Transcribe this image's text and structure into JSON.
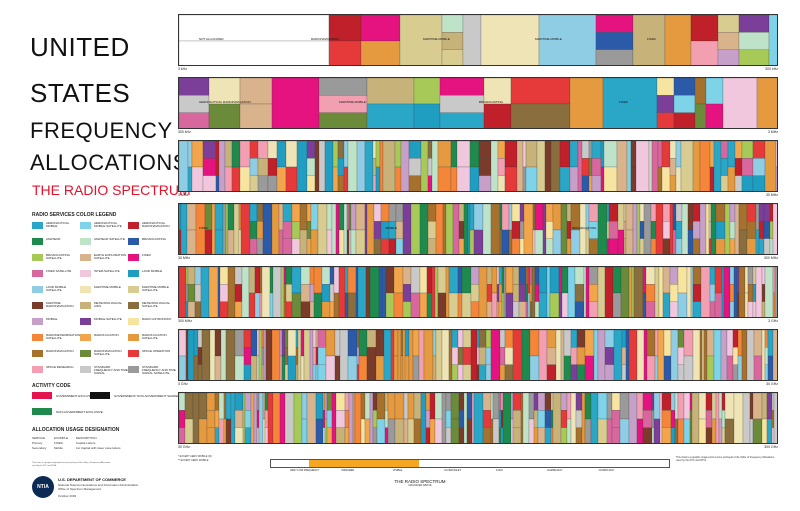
{
  "title": {
    "line1": "UNITED",
    "line2": "STATES",
    "line3": "FREQUENCY",
    "line4": "ALLOCATIONS",
    "subtitle": "THE RADIO SPECTRUM"
  },
  "legend": {
    "title": "RADIO SERVICES COLOR LEGEND",
    "items": [
      {
        "label": "AERONAUTICAL MOBILE",
        "color": "#2aa7c7"
      },
      {
        "label": "AERONAUTICAL MOBILE SATELLITE",
        "color": "#7fd3e8"
      },
      {
        "label": "AERONAUTICAL RADIONAVIGATION",
        "color": "#c0202a"
      },
      {
        "label": "AMATEUR",
        "color": "#1e8a4d"
      },
      {
        "label": "AMATEUR SATELLITE",
        "color": "#bfe3c9"
      },
      {
        "label": "BROADCASTING",
        "color": "#2b5ba8"
      },
      {
        "label": "BROADCASTING SATELLITE",
        "color": "#a7c957"
      },
      {
        "label": "EARTH EXPLORATION SATELLITE",
        "color": "#d9b38c"
      },
      {
        "label": "FIXED",
        "color": "#e4137f"
      },
      {
        "label": "FIXED SATELLITE",
        "color": "#d8679d"
      },
      {
        "label": "INTER-SATELLITE",
        "color": "#f0c7dc"
      },
      {
        "label": "LAND MOBILE",
        "color": "#1f9ec2"
      },
      {
        "label": "LAND MOBILE SATELLITE",
        "color": "#8ecde3"
      },
      {
        "label": "MARITIME MOBILE",
        "color": "#efe4b5"
      },
      {
        "label": "MARITIME MOBILE SATELLITE",
        "color": "#d8cc91"
      },
      {
        "label": "MARITIME RADIONAVIGATION",
        "color": "#7a3b2a"
      },
      {
        "label": "METEOROLOGICAL AIDS",
        "color": "#c7b27a"
      },
      {
        "label": "METEOROLOGICAL SATELLITE",
        "color": "#8a6e3d"
      },
      {
        "label": "MOBILE",
        "color": "#c7a0c9"
      },
      {
        "label": "MOBILE SATELLITE",
        "color": "#7b3f99"
      },
      {
        "label": "RADIO ASTRONOMY",
        "color": "#f7e4a0"
      },
      {
        "label": "RADIODETERMINATION SATELLITE",
        "color": "#f4863a"
      },
      {
        "label": "RADIOLOCATION",
        "color": "#f2a54a"
      },
      {
        "label": "RADIOLOCATION SATELLITE",
        "color": "#e59a3f"
      },
      {
        "label": "RADIONAVIGATION",
        "color": "#a6712d"
      },
      {
        "label": "RADIONAVIGATION SATELLITE",
        "color": "#6b8a3a"
      },
      {
        "label": "SPACE OPERATION",
        "color": "#e63a3a"
      },
      {
        "label": "SPACE RESEARCH",
        "color": "#f29fb2"
      },
      {
        "label": "STANDARD FREQUENCY AND TIME SIGNAL",
        "color": "#c9c9c9"
      },
      {
        "label": "STANDARD FREQUENCY AND TIME SIGNAL SATELLITE",
        "color": "#9a9a9a"
      }
    ]
  },
  "activity": {
    "title": "ACTIVITY CODE",
    "items": [
      {
        "label": "GOVERNMENT EXCLUSIVE",
        "color": "#e4134f"
      },
      {
        "label": "GOVERNMENT/ NON-GOVERNMENT SHARED",
        "color": "#111111"
      },
      {
        "label": "NON-GOVERNMENT EXCLUSIVE",
        "color": "#1e8a4d"
      }
    ]
  },
  "usage": {
    "title": "ALLOCATION USAGE DESIGNATION",
    "head": [
      "SERVICE",
      "EXAMPLE",
      "DESCRIPTION"
    ],
    "rows": [
      [
        "Primary",
        "FIXED",
        "Capital Letters"
      ],
      [
        "Secondary",
        "Mobile",
        "1st Capital with lower case letters"
      ]
    ]
  },
  "fineprint": "This chart is a graphic single-point-in-time portrayal of the Table of Frequency Allocations used by the FCC and NTIA.",
  "department": {
    "logo": "NTIA",
    "line1": "U.S. DEPARTMENT OF COMMERCE",
    "line2": "National Telecommunications and Information Administration",
    "line3": "Office of Spectrum Management",
    "date": "October 2003"
  },
  "bands": [
    {
      "start": "3 kHz",
      "end": "300 kHz",
      "texts": [
        "NOT ALLOCATED",
        "RADIONAVIGATION",
        "MARITIME MOBILE",
        "MARITIME MOBILE",
        "FIXED"
      ]
    },
    {
      "start": "300 kHz",
      "end": "3 MHz",
      "texts": [
        "AERONAUTICAL RADIONAVIGATION",
        "MARITIME MOBILE",
        "BROADCASTING",
        "FIXED"
      ]
    },
    {
      "start": "3 MHz",
      "end": "30 MHz",
      "texts": []
    },
    {
      "start": "30 MHz",
      "end": "300 MHz",
      "texts": [
        "FIXED",
        "MOBILE",
        "BROADCASTING"
      ]
    },
    {
      "start": "300 MHz",
      "end": "3 GHz",
      "texts": []
    },
    {
      "start": "3 GHz",
      "end": "30 GHz",
      "texts": []
    },
    {
      "start": "30 GHz",
      "end": "300 GHz",
      "texts": []
    }
  ],
  "spectrum_strip": {
    "title": "THE RADIO SPECTRUM",
    "subtitle": "MAGNIFIED ABOVE",
    "labels": [
      "VERY LOW FREQUENCY",
      "INFRARED",
      "VISIBLE",
      "ULTRAVIOLET",
      "X-RAY",
      "GAMMA-RAY",
      "COSMIC-RAY"
    ]
  },
  "footnote": [
    "* EXCEPT AERO MOBILE (R)",
    "** EXCEPT AERO MOBILE"
  ],
  "notes": "This chart is a graphic single-point-in-time portrayal of the Table of Frequency Allocations used by the FCC and NTIA."
}
